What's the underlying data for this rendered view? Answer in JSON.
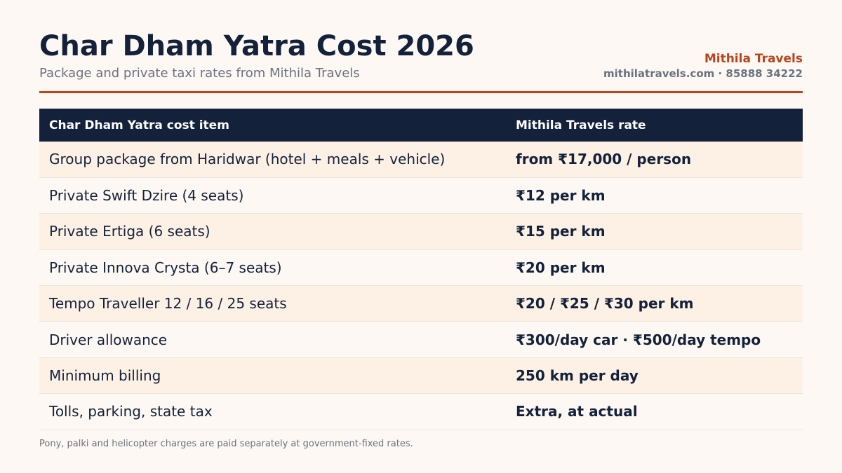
{
  "header": {
    "title": "Char Dham Yatra Cost 2026",
    "subtitle": "Package and private taxi rates from Mithila Travels",
    "brand_name": "Mithila Travels",
    "brand_contact": "mithilatravels.com · 85888 34222"
  },
  "table": {
    "columns": [
      "Char Dham Yatra cost item",
      "Mithila Travels rate"
    ],
    "rows": [
      {
        "item": "Group package from Haridwar (hotel + meals + vehicle)",
        "rate": "from ₹17,000 / person"
      },
      {
        "item": "Private Swift Dzire (4 seats)",
        "rate": "₹12 per km"
      },
      {
        "item": "Private Ertiga (6 seats)",
        "rate": "₹15 per km"
      },
      {
        "item": "Private Innova Crysta (6–7 seats)",
        "rate": "₹20 per km"
      },
      {
        "item": "Tempo Traveller 12 / 16 / 25 seats",
        "rate": "₹20 / ₹25 / ₹30 per km"
      },
      {
        "item": "Driver allowance",
        "rate": "₹300/day car · ₹500/day tempo"
      },
      {
        "item": "Minimum billing",
        "rate": "250 km per day"
      },
      {
        "item": "Tolls, parking, state tax",
        "rate": "Extra, at actual"
      }
    ]
  },
  "footnote": "Pony, palki and helicopter charges are paid separately at government-fixed rates.",
  "colors": {
    "background": "#fdf8f3",
    "navy": "#13213a",
    "accent": "#b6461f",
    "row_alt": "#fdf1e6",
    "muted_text": "#6b7280"
  }
}
